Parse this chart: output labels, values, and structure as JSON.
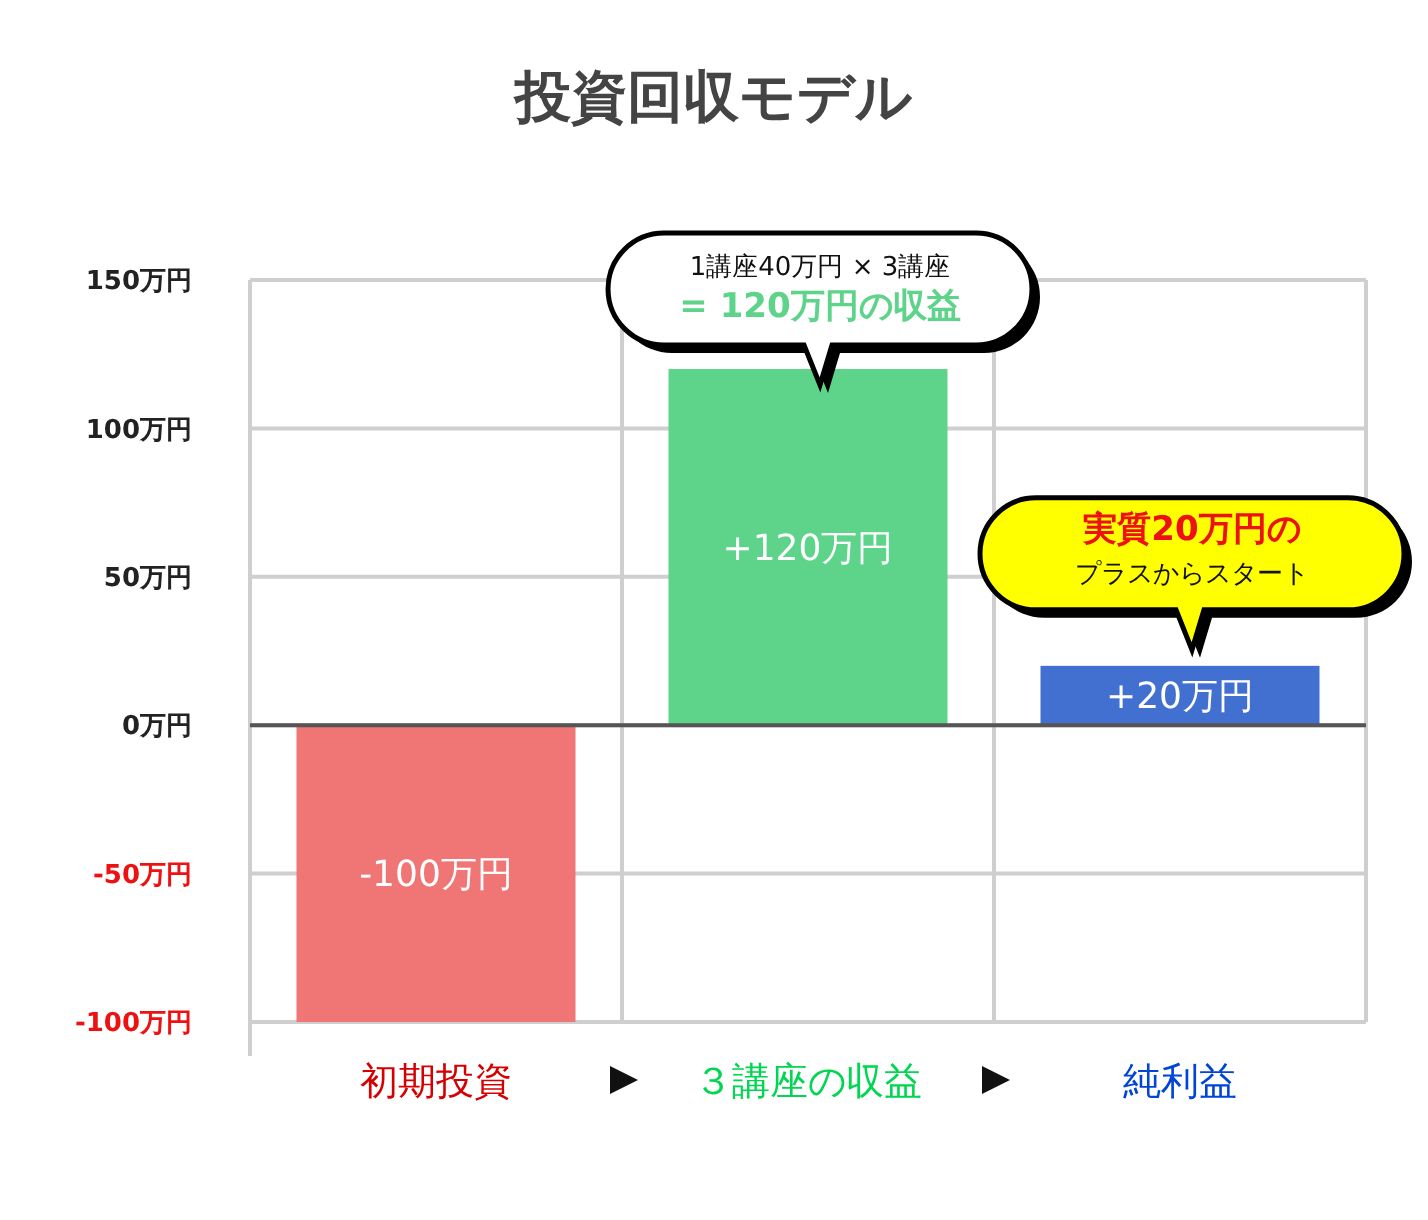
{
  "chart_data": {
    "type": "bar",
    "title": "投資回収モデル",
    "categories": [
      "初期投資",
      "３講座の収益",
      "純利益"
    ],
    "values": [
      -100,
      120,
      20
    ],
    "colors": [
      "#f07575",
      "#5ed38a",
      "#4270d0"
    ],
    "value_labels": [
      "-100万円",
      "+120万円",
      "+20万円"
    ],
    "ylim": [
      -100,
      150
    ],
    "yticks": [
      {
        "value": -100,
        "label": "-100万円"
      },
      {
        "value": -50,
        "label": "-50万円"
      },
      {
        "value": 0,
        "label": "0万円"
      },
      {
        "value": 50,
        "label": "50万円"
      },
      {
        "value": 100,
        "label": "100万円"
      },
      {
        "value": 150,
        "label": "150万円"
      }
    ],
    "grid": true,
    "annotations": [
      "1講座40万円 × 3講座",
      "= 120万円の収益",
      "実質20万円の",
      "プラスからスタート"
    ]
  }
}
